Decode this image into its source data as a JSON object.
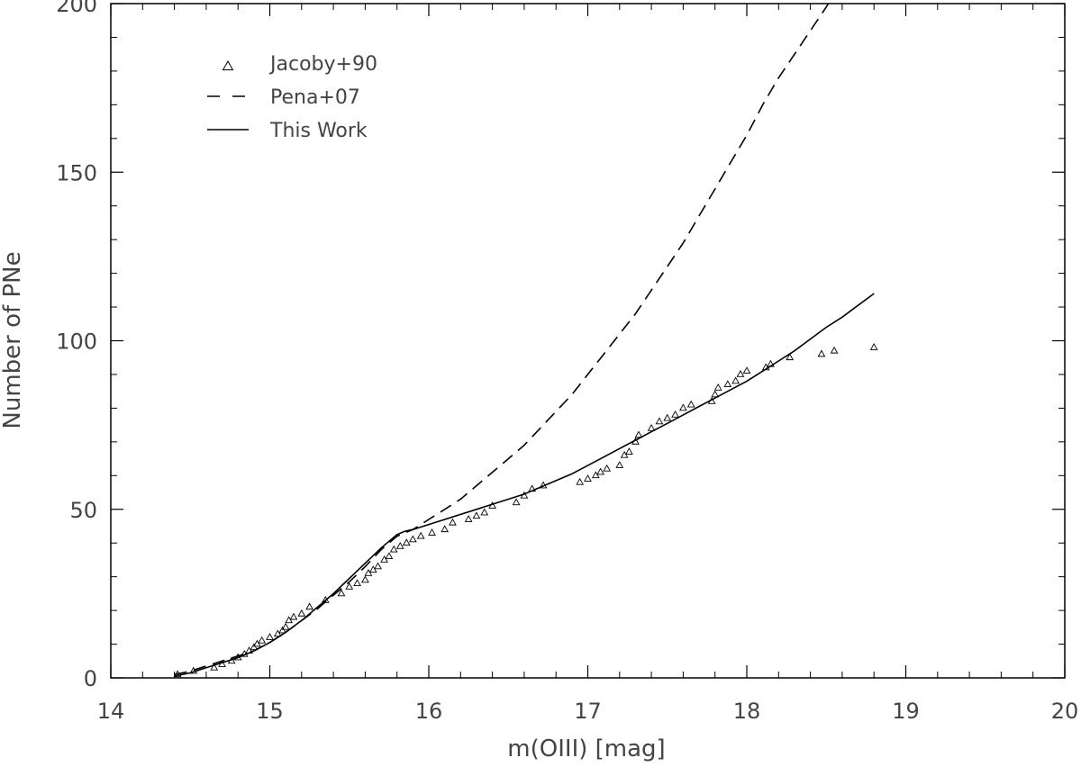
{
  "chart_data": {
    "type": "scatter",
    "title": "",
    "xlabel": "m(OIII) [mag]",
    "ylabel": "Number of PNe",
    "xlim": [
      14,
      20
    ],
    "ylim": [
      0,
      200
    ],
    "xticks": [
      14,
      15,
      16,
      17,
      18,
      19,
      20
    ],
    "xtick_labels": [
      "14",
      "15",
      "16",
      "17",
      "18",
      "19",
      "20"
    ],
    "yticks": [
      0,
      50,
      100,
      150,
      200
    ],
    "ytick_labels": [
      "0",
      "50",
      "100",
      "150",
      "200"
    ],
    "legend_position": "top-left",
    "grid": false,
    "series": [
      {
        "name": "Jacoby+90",
        "kind": "scatter",
        "marker": "triangle",
        "x": [
          14.42,
          14.52,
          14.65,
          14.7,
          14.76,
          14.8,
          14.84,
          14.87,
          14.9,
          14.92,
          14.95,
          15.0,
          15.05,
          15.08,
          15.1,
          15.12,
          15.15,
          15.2,
          15.25,
          15.35,
          15.45,
          15.5,
          15.55,
          15.6,
          15.62,
          15.65,
          15.68,
          15.72,
          15.75,
          15.78,
          15.82,
          15.86,
          15.9,
          15.95,
          16.02,
          16.1,
          16.15,
          16.25,
          16.3,
          16.35,
          16.4,
          16.55,
          16.6,
          16.65,
          16.72,
          16.95,
          17.0,
          17.05,
          17.08,
          17.12,
          17.2,
          17.23,
          17.26,
          17.3,
          17.32,
          17.4,
          17.45,
          17.5,
          17.55,
          17.6,
          17.65,
          17.78,
          17.8,
          17.82,
          17.88,
          17.93,
          17.96,
          18.0,
          18.12,
          18.15,
          18.27,
          18.47,
          18.55,
          18.8
        ],
        "y": [
          1,
          2,
          3,
          4,
          5,
          6,
          7,
          8,
          9,
          10,
          11,
          12,
          13,
          14,
          15,
          17,
          18,
          19,
          21,
          23,
          25,
          27,
          28,
          29,
          31,
          32,
          33,
          35,
          36,
          38,
          39,
          40,
          41,
          42,
          43,
          44,
          46,
          47,
          48,
          49,
          51,
          52,
          54,
          56,
          57,
          58,
          59,
          60,
          61,
          62,
          63,
          66,
          67,
          70,
          72,
          74,
          76,
          77,
          78,
          80,
          81,
          82,
          84,
          86,
          87,
          88,
          90,
          91,
          92,
          93,
          95,
          96,
          97,
          98
        ]
      },
      {
        "name": "Pena+07",
        "kind": "line",
        "dash": "dashed",
        "x": [
          14.4,
          14.5,
          14.6,
          14.7,
          14.8,
          14.9,
          15.0,
          15.1,
          15.2,
          15.3,
          15.4,
          15.5,
          15.6,
          15.7,
          15.8,
          15.9,
          16.0,
          16.1,
          16.2,
          16.3,
          16.4,
          16.5,
          16.6,
          16.7,
          16.8,
          16.9,
          17.0,
          17.1,
          17.2,
          17.3,
          17.4,
          17.5,
          17.6,
          17.7,
          17.8,
          17.9,
          18.0,
          18.1,
          18.2,
          18.3,
          18.4,
          18.5,
          18.6
        ],
        "y": [
          1,
          2,
          3.5,
          5,
          6.5,
          8,
          10.5,
          13.5,
          17,
          20.5,
          24.5,
          28.5,
          33,
          38,
          42,
          44,
          47,
          50,
          53,
          57,
          61,
          65,
          69,
          74,
          79,
          84,
          90,
          96,
          102,
          108,
          115,
          122,
          129,
          137,
          145,
          153,
          161,
          170,
          178,
          185,
          192,
          199,
          207
        ]
      },
      {
        "name": "This Work",
        "kind": "line",
        "dash": "solid",
        "x": [
          14.4,
          14.5,
          14.6,
          14.7,
          14.8,
          14.9,
          15.0,
          15.1,
          15.2,
          15.3,
          15.4,
          15.5,
          15.6,
          15.7,
          15.8,
          15.85,
          15.9,
          16.0,
          16.1,
          16.2,
          16.3,
          16.4,
          16.5,
          16.6,
          16.7,
          16.8,
          16.9,
          17.0,
          17.1,
          17.2,
          17.3,
          17.4,
          17.5,
          17.6,
          17.7,
          17.8,
          17.9,
          18.0,
          18.1,
          18.2,
          18.3,
          18.4,
          18.5,
          18.6,
          18.7,
          18.8
        ],
        "y": [
          0.5,
          1.5,
          3,
          4.5,
          6,
          8,
          10.5,
          13.5,
          17,
          21,
          25,
          29.5,
          34,
          38.5,
          42.5,
          43.5,
          44,
          45.5,
          47,
          48.5,
          50,
          51.5,
          53,
          54.5,
          56.5,
          58.5,
          60.5,
          63,
          65.5,
          68,
          70.5,
          73,
          75.5,
          78,
          80.5,
          83,
          85.5,
          88,
          91,
          94,
          97,
          100.5,
          104,
          107,
          110.5,
          114
        ]
      }
    ]
  }
}
